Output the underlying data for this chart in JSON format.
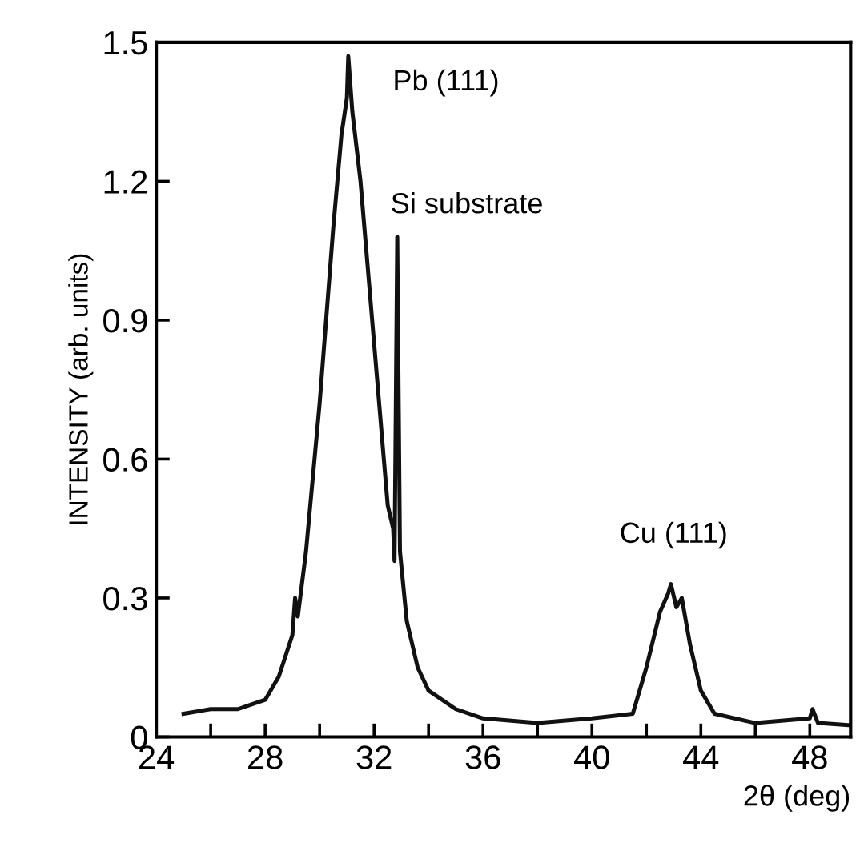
{
  "chart_data": {
    "type": "line",
    "xlabel": "2θ (deg)",
    "ylabel": "INTENSITY (arb. units)",
    "x": [
      25,
      26,
      27,
      27.5,
      28,
      28.5,
      29,
      29.1,
      29.2,
      29.5,
      30,
      30.5,
      30.8,
      31,
      31.05,
      31.2,
      31.5,
      32,
      32.5,
      32.7,
      32.75,
      32.85,
      32.95,
      33.2,
      33.6,
      34,
      35,
      36,
      38,
      40,
      41.5,
      42,
      42.5,
      42.8,
      42.9,
      43.1,
      43.3,
      43.6,
      44,
      44.5,
      46,
      48,
      48.1,
      48.3,
      49.5
    ],
    "series": [
      {
        "color": "#111111",
        "values": [
          0.05,
          0.06,
          0.06,
          0.07,
          0.08,
          0.13,
          0.22,
          0.3,
          0.26,
          0.4,
          0.72,
          1.1,
          1.3,
          1.38,
          1.47,
          1.35,
          1.2,
          0.85,
          0.5,
          0.45,
          0.38,
          1.08,
          0.4,
          0.25,
          0.15,
          0.1,
          0.06,
          0.04,
          0.03,
          0.04,
          0.05,
          0.15,
          0.27,
          0.31,
          0.33,
          0.28,
          0.3,
          0.2,
          0.1,
          0.05,
          0.03,
          0.04,
          0.06,
          0.03,
          0.025
        ]
      }
    ],
    "annotations": [
      {
        "text": "Pb (111)",
        "x": 31.05,
        "y": 1.47
      },
      {
        "text": "Si substrate",
        "x": 32.85,
        "y": 1.08
      },
      {
        "text": "Cu (111)",
        "x": 43,
        "y": 0.33
      }
    ],
    "xlim": [
      24,
      49.5
    ],
    "ylim": [
      0,
      1.5
    ],
    "xticks": [
      24,
      {
        "value": 26,
        "label": null
      },
      28,
      {
        "value": 30,
        "label": null
      },
      32,
      {
        "value": 34,
        "label": null
      },
      36,
      {
        "value": 38,
        "label": null
      },
      40,
      {
        "value": 42,
        "label": null
      },
      44,
      {
        "value": 46,
        "label": null
      },
      48
    ],
    "yticks": [
      0,
      0.3,
      0.6,
      0.9,
      1.2,
      1.5
    ],
    "grid": false,
    "legend": false,
    "marker": "none",
    "line_style": "solid"
  }
}
